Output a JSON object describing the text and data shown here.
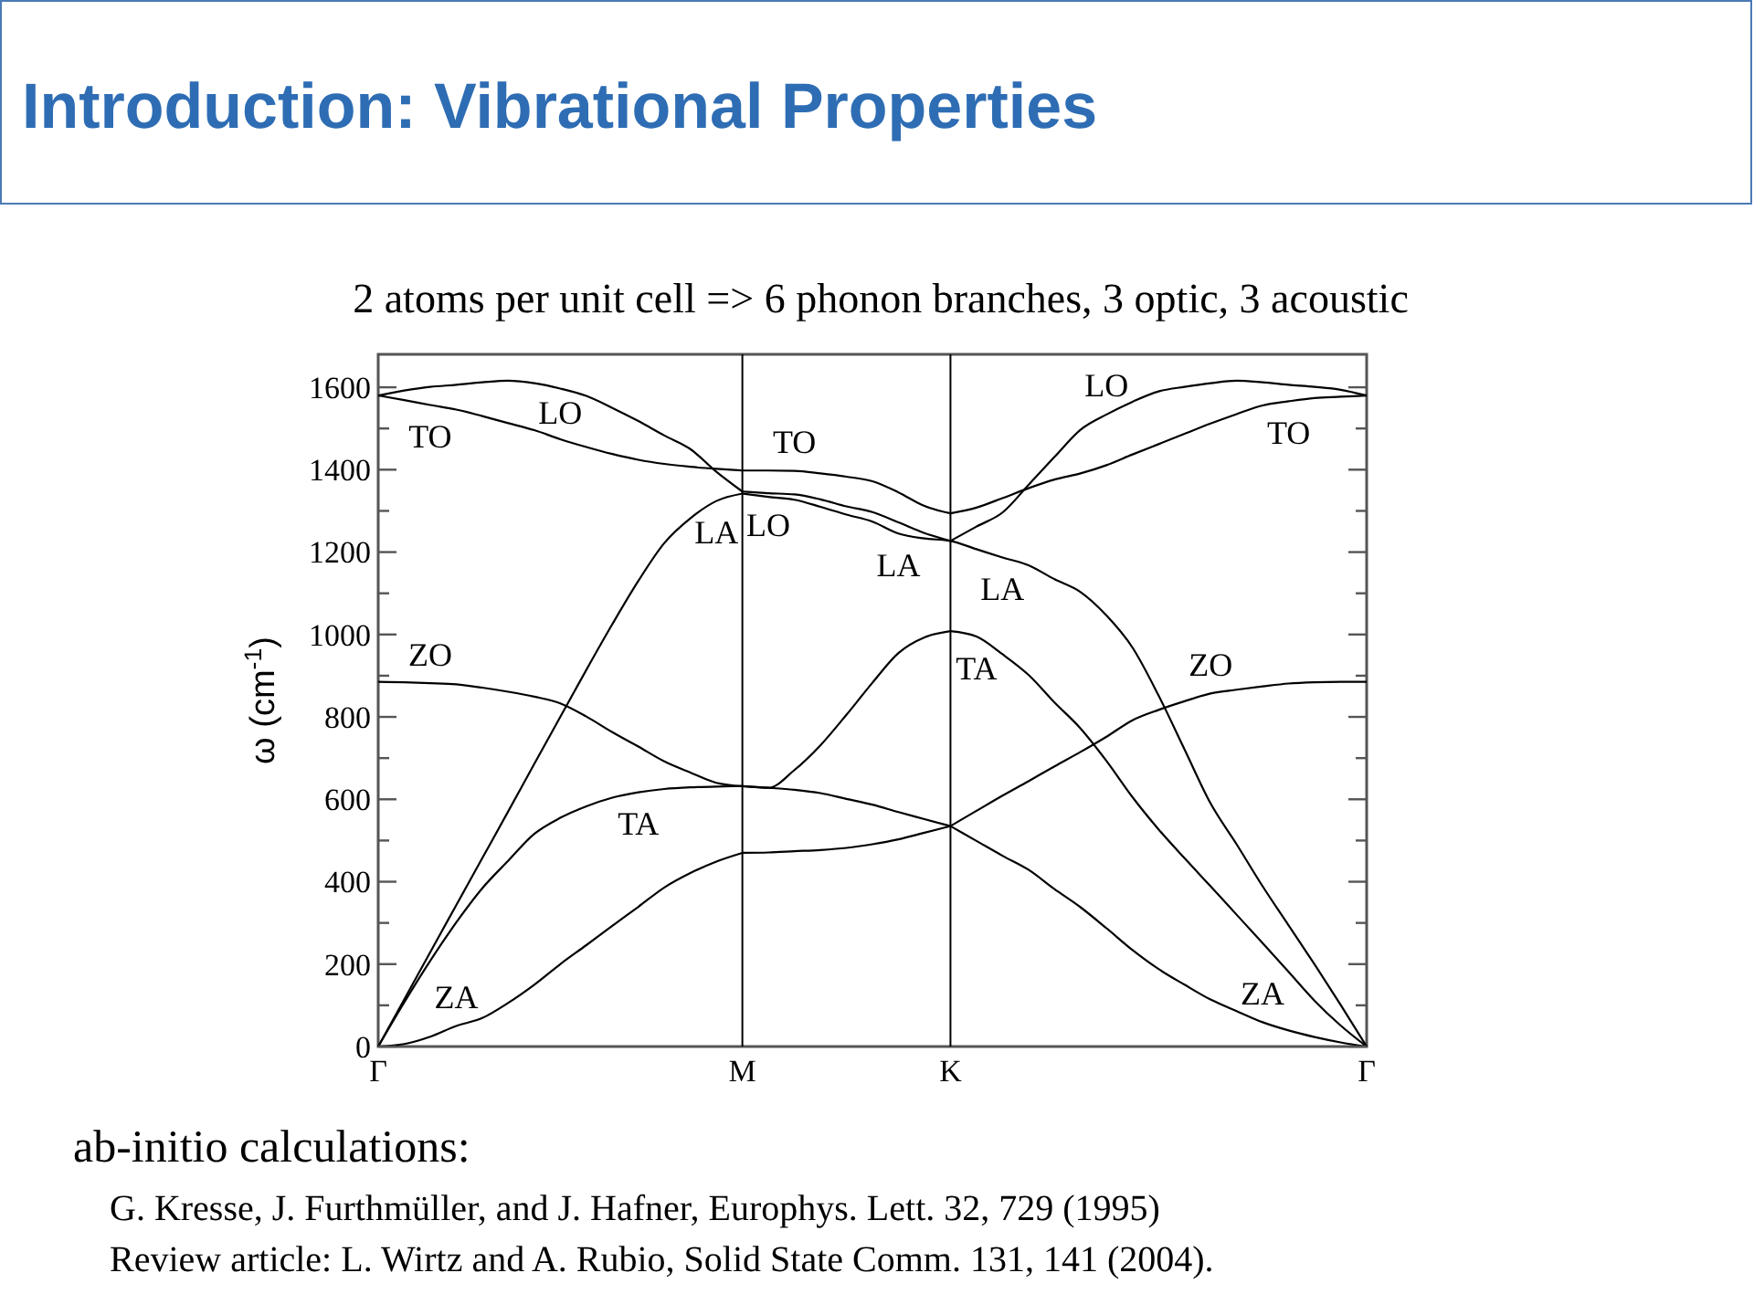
{
  "chart_data": {
    "type": "line",
    "title": "Introduction: Vibrational Properties",
    "subtitle": "2 atoms per unit cell => 6 phonon branches, 3 optic, 3 acoustic",
    "ylabel": "ω (cm$^{-1}$)",
    "categories": [
      "Γ",
      null,
      null,
      null,
      null,
      null,
      null,
      null,
      null,
      null,
      null,
      null,
      null,
      null,
      "M",
      null,
      null,
      null,
      null,
      null,
      null,
      null,
      "K",
      null,
      null,
      null,
      null,
      null,
      null,
      null,
      null,
      null,
      null,
      null,
      null,
      null,
      null,
      null,
      "Γ"
    ],
    "ylim": [
      0,
      1680
    ],
    "yticks": [
      0,
      {
        "value": 100,
        "label": null
      },
      200,
      {
        "value": 300,
        "label": null
      },
      400,
      {
        "value": 500,
        "label": null
      },
      600,
      {
        "value": 700,
        "label": null
      },
      800,
      {
        "value": 900,
        "label": null
      },
      1000,
      {
        "value": 1100,
        "label": null
      },
      1200,
      {
        "value": 1300,
        "label": null
      },
      1400,
      {
        "value": 1500,
        "label": null
      },
      1600
    ],
    "grid": false,
    "marker": "none",
    "line_style": "solid",
    "ref_lines": [
      {
        "axis": "x",
        "value": "M",
        "color": "#000000"
      },
      {
        "axis": "x",
        "value": "K",
        "color": "#000000"
      }
    ],
    "series": [
      {
        "name": "TO",
        "color": "#000000",
        "values": [
          null,
          null,
          null,
          null,
          null,
          null,
          null,
          null,
          null,
          null,
          null,
          null,
          null,
          null,
          1398,
          1398,
          1397,
          1391,
          1383,
          1372,
          1345,
          1312,
          1294,
          null,
          null,
          null,
          null,
          null,
          null,
          null,
          null,
          null,
          null,
          null,
          null,
          null,
          null,
          null,
          null
        ]
      },
      {
        "name": "LO",
        "color": "#000000",
        "values": [
          null,
          null,
          null,
          null,
          null,
          null,
          null,
          null,
          null,
          null,
          null,
          null,
          null,
          null,
          1347,
          1343,
          1340,
          1328,
          1311,
          1297,
          1272,
          1246,
          1227,
          null,
          null,
          null,
          null,
          null,
          null,
          null,
          null,
          null,
          null,
          null,
          null,
          null,
          null,
          null,
          null
        ]
      },
      {
        "color": "#000000",
        "values": [
          null,
          null,
          null,
          null,
          null,
          null,
          null,
          null,
          null,
          null,
          null,
          null,
          null,
          null,
          632,
          628,
          671,
          731,
          805,
          883,
          955,
          993,
          1008,
          null,
          null,
          null,
          null,
          null,
          null,
          null,
          null,
          null,
          null,
          null,
          null,
          null,
          null,
          null,
          null
        ]
      },
      {
        "color": "#000000",
        "values": [
          null,
          null,
          null,
          null,
          null,
          null,
          null,
          null,
          null,
          null,
          null,
          null,
          null,
          null,
          632,
          628,
          623,
          615,
          601,
          587,
          569,
          552,
          535,
          null,
          null,
          null,
          null,
          null,
          null,
          null,
          null,
          null,
          null,
          null,
          null,
          null,
          null,
          null,
          null
        ]
      },
      {
        "color": "#000000",
        "values": [
          null,
          null,
          null,
          null,
          null,
          null,
          null,
          null,
          null,
          null,
          null,
          null,
          null,
          null,
          470,
          471,
          474,
          477,
          482,
          491,
          503,
          519,
          535,
          null,
          null,
          null,
          null,
          null,
          null,
          null,
          null,
          null,
          null,
          null,
          null,
          null,
          null,
          null,
          null
        ]
      },
      {
        "name": "LO",
        "color": "#000000",
        "values": [
          1580,
          1592,
          1601,
          1606,
          1612,
          1616,
          1610,
          1597,
          1579,
          1550,
          1518,
          1483,
          1450,
          1395,
          1347,
          null,
          null,
          null,
          null,
          null,
          null,
          null,
          null,
          null,
          null,
          null,
          null,
          null,
          null,
          null,
          null,
          null,
          null,
          null,
          null,
          null,
          null,
          null,
          null
        ]
      },
      {
        "name": "TO",
        "color": "#000000",
        "values": [
          1580,
          1569,
          1557,
          1546,
          1530,
          1513,
          1496,
          1474,
          1455,
          1438,
          1424,
          1414,
          1407,
          1402,
          1398,
          null,
          null,
          null,
          null,
          null,
          null,
          null,
          null,
          null,
          null,
          null,
          null,
          null,
          null,
          null,
          null,
          null,
          null,
          null,
          null,
          null,
          null,
          null,
          null
        ]
      },
      {
        "name": "LA",
        "color": "#000000",
        "values": [
          0,
          114,
          229,
          343,
          457,
          571,
          686,
          800,
          914,
          1025,
          1130,
          1222,
          1282,
          1324,
          1342,
          null,
          null,
          null,
          null,
          null,
          null,
          null,
          null,
          null,
          null,
          null,
          null,
          null,
          null,
          null,
          null,
          null,
          null,
          null,
          null,
          null,
          null,
          null,
          null
        ]
      },
      {
        "name": "ZO",
        "color": "#000000",
        "values": [
          885,
          884,
          882,
          879,
          871,
          861,
          849,
          833,
          801,
          763,
          728,
          692,
          665,
          640,
          632,
          null,
          null,
          null,
          null,
          null,
          null,
          null,
          null,
          null,
          null,
          null,
          null,
          null,
          null,
          null,
          null,
          null,
          null,
          null,
          null,
          null,
          null,
          null,
          null
        ]
      },
      {
        "name": "TA",
        "color": "#000000",
        "values": [
          0,
          107,
          208,
          301,
          384,
          451,
          516,
          555,
          583,
          604,
          617,
          625,
          629,
          631,
          632,
          null,
          null,
          null,
          null,
          null,
          null,
          null,
          null,
          null,
          null,
          null,
          null,
          null,
          null,
          null,
          null,
          null,
          null,
          null,
          null,
          null,
          null,
          null,
          null
        ]
      },
      {
        "name": "ZA",
        "color": "#000000",
        "values": [
          0,
          6,
          24,
          50,
          69,
          106,
          150,
          200,
          246,
          293,
          339,
          386,
          421,
          449,
          470,
          null,
          null,
          null,
          null,
          null,
          null,
          null,
          null,
          null,
          null,
          null,
          null,
          null,
          null,
          null,
          null,
          null,
          null,
          null,
          null,
          null,
          null,
          null,
          null
        ]
      },
      {
        "name": "LO",
        "color": "#000000",
        "values": [
          null,
          null,
          null,
          null,
          null,
          null,
          null,
          null,
          null,
          null,
          null,
          null,
          null,
          null,
          null,
          null,
          null,
          null,
          null,
          null,
          null,
          null,
          1227,
          1262,
          1296,
          1363,
          1431,
          1497,
          1534,
          1565,
          1590,
          1601,
          1610,
          1616,
          1612,
          1606,
          1601,
          1594,
          1580
        ]
      },
      {
        "name": "TO",
        "color": "#000000",
        "values": [
          null,
          null,
          null,
          null,
          null,
          null,
          null,
          null,
          null,
          null,
          null,
          null,
          null,
          null,
          null,
          null,
          null,
          null,
          null,
          null,
          null,
          null,
          1294,
          1308,
          1331,
          1355,
          1376,
          1391,
          1411,
          1437,
          1462,
          1487,
          1512,
          1535,
          1556,
          1566,
          1574,
          1577,
          1580
        ]
      },
      {
        "name": "LA",
        "color": "#000000",
        "values": [
          null,
          null,
          null,
          null,
          null,
          null,
          null,
          null,
          null,
          null,
          null,
          null,
          null,
          null,
          1342,
          1334,
          1327,
          1310,
          1291,
          1274,
          1245,
          1233,
          1227,
          1207,
          1187,
          1168,
          1134,
          1103,
          1046,
          968,
          852,
          721,
          590,
          491,
          389,
          294,
          199,
          101,
          0
        ]
      },
      {
        "name": "TA",
        "color": "#000000",
        "values": [
          null,
          null,
          null,
          null,
          null,
          null,
          null,
          null,
          null,
          null,
          null,
          null,
          null,
          null,
          null,
          null,
          null,
          null,
          null,
          null,
          null,
          null,
          1008,
          995,
          952,
          902,
          835,
          772,
          693,
          605,
          527,
          457,
          389,
          320,
          251,
          181,
          111,
          51,
          0
        ]
      },
      {
        "name": "ZO",
        "color": "#000000",
        "values": [
          null,
          null,
          null,
          null,
          null,
          null,
          null,
          null,
          null,
          null,
          null,
          null,
          null,
          null,
          null,
          null,
          null,
          null,
          null,
          null,
          null,
          null,
          535,
          572,
          609,
          644,
          680,
          715,
          752,
          792,
          817,
          838,
          857,
          866,
          874,
          881,
          884,
          885,
          885
        ]
      },
      {
        "name": "ZA",
        "color": "#000000",
        "values": [
          null,
          null,
          null,
          null,
          null,
          null,
          null,
          null,
          null,
          null,
          null,
          null,
          null,
          null,
          null,
          null,
          null,
          null,
          null,
          null,
          null,
          null,
          535,
          499,
          463,
          429,
          382,
          338,
          287,
          234,
          188,
          150,
          114,
          86,
          59,
          39,
          23,
          10,
          0
        ]
      }
    ],
    "annotations": [
      "ab-initio calculations:",
      "G. Kresse, J. Furthmüller, and J. Hafner, Europhys. Lett. 32, 729 (1995)",
      "Review article: L. Wirtz and A. Rubio, Solid State Comm. 131, 141 (2004)."
    ]
  }
}
